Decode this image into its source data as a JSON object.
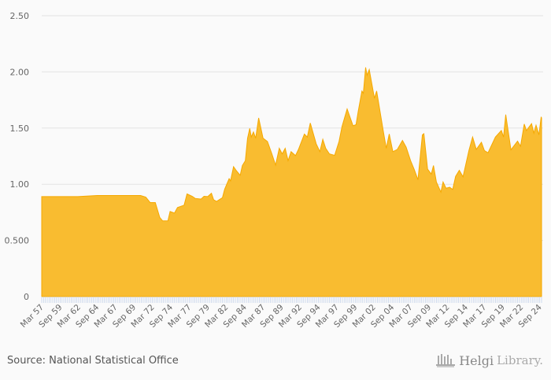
{
  "chart_data": {
    "type": "area",
    "title": "",
    "xlabel": "",
    "ylabel": "",
    "ylim": [
      0,
      2.5
    ],
    "yticks": [
      "0",
      "0.500",
      "1.00",
      "1.50",
      "2.00",
      "2.50"
    ],
    "ytick_values": [
      0,
      0.5,
      1.0,
      1.5,
      2.0,
      2.5
    ],
    "grid": true,
    "frequency": "quarterly",
    "x_start": "Mar 57",
    "x_end": "Dec 24",
    "num_periods": 272,
    "xtick_labels": [
      "Mar 57",
      "Sep 59",
      "Mar 62",
      "Sep 64",
      "Mar 67",
      "Sep 69",
      "Mar 72",
      "Sep 74",
      "Mar 77",
      "Sep 79",
      "Mar 82",
      "Sep 84",
      "Mar 87",
      "Sep 89",
      "Mar 92",
      "Sep 94",
      "Mar 97",
      "Sep 99",
      "Mar 02",
      "Sep 04",
      "Mar 07",
      "Sep 09",
      "Mar 12",
      "Sep 14",
      "Mar 17",
      "Sep 19",
      "Mar 22",
      "Sep 24"
    ],
    "series": [
      {
        "name": "Value",
        "color": "#f9bc30",
        "line_color": "#f5a800",
        "points": [
          [
            1957.0,
            0.89
          ],
          [
            1961.9,
            0.89
          ],
          [
            1964.5,
            0.9
          ],
          [
            1970.4,
            0.9
          ],
          [
            1971.1,
            0.886
          ],
          [
            1971.7,
            0.837
          ],
          [
            1972.4,
            0.837
          ],
          [
            1973.0,
            0.704
          ],
          [
            1973.4,
            0.674
          ],
          [
            1974.1,
            0.674
          ],
          [
            1974.4,
            0.758
          ],
          [
            1975.0,
            0.744
          ],
          [
            1975.4,
            0.793
          ],
          [
            1976.3,
            0.814
          ],
          [
            1976.7,
            0.914
          ],
          [
            1977.4,
            0.893
          ],
          [
            1977.8,
            0.874
          ],
          [
            1978.6,
            0.868
          ],
          [
            1979.0,
            0.893
          ],
          [
            1979.5,
            0.89
          ],
          [
            1980.0,
            0.92
          ],
          [
            1980.3,
            0.862
          ],
          [
            1980.7,
            0.847
          ],
          [
            1981.5,
            0.88
          ],
          [
            1981.8,
            0.956
          ],
          [
            1982.4,
            1.05
          ],
          [
            1982.6,
            1.03
          ],
          [
            1983.0,
            1.157
          ],
          [
            1983.4,
            1.12
          ],
          [
            1983.9,
            1.08
          ],
          [
            1984.2,
            1.167
          ],
          [
            1984.6,
            1.21
          ],
          [
            1984.9,
            1.41
          ],
          [
            1985.2,
            1.497
          ],
          [
            1985.4,
            1.42
          ],
          [
            1985.7,
            1.466
          ],
          [
            1986.0,
            1.41
          ],
          [
            1986.4,
            1.59
          ],
          [
            1987.0,
            1.41
          ],
          [
            1987.6,
            1.38
          ],
          [
            1988.2,
            1.27
          ],
          [
            1988.7,
            1.17
          ],
          [
            1989.2,
            1.32
          ],
          [
            1989.6,
            1.27
          ],
          [
            1990.0,
            1.32
          ],
          [
            1990.4,
            1.21
          ],
          [
            1990.8,
            1.29
          ],
          [
            1991.4,
            1.255
          ],
          [
            1991.8,
            1.31
          ],
          [
            1992.6,
            1.447
          ],
          [
            1993.0,
            1.42
          ],
          [
            1993.4,
            1.545
          ],
          [
            1994.2,
            1.36
          ],
          [
            1994.7,
            1.29
          ],
          [
            1995.1,
            1.4
          ],
          [
            1995.5,
            1.32
          ],
          [
            1996.0,
            1.27
          ],
          [
            1996.7,
            1.257
          ],
          [
            1997.3,
            1.38
          ],
          [
            1997.7,
            1.513
          ],
          [
            1998.4,
            1.67
          ],
          [
            1999.2,
            1.52
          ],
          [
            1999.6,
            1.53
          ],
          [
            1999.9,
            1.65
          ],
          [
            2000.4,
            1.83
          ],
          [
            2000.6,
            1.81
          ],
          [
            2000.9,
            2.04
          ],
          [
            2001.1,
            1.97
          ],
          [
            2001.4,
            2.02
          ],
          [
            2002.1,
            1.765
          ],
          [
            2002.4,
            1.83
          ],
          [
            2003.3,
            1.47
          ],
          [
            2003.7,
            1.32
          ],
          [
            2004.1,
            1.447
          ],
          [
            2004.6,
            1.29
          ],
          [
            2005.2,
            1.31
          ],
          [
            2005.9,
            1.39
          ],
          [
            2006.4,
            1.33
          ],
          [
            2007.0,
            1.21
          ],
          [
            2007.5,
            1.13
          ],
          [
            2008.0,
            1.04
          ],
          [
            2008.6,
            1.44
          ],
          [
            2008.8,
            1.45
          ],
          [
            2009.3,
            1.135
          ],
          [
            2009.8,
            1.09
          ],
          [
            2010.1,
            1.167
          ],
          [
            2010.5,
            1.02
          ],
          [
            2011.1,
            0.93
          ],
          [
            2011.4,
            1.02
          ],
          [
            2011.8,
            0.965
          ],
          [
            2012.3,
            0.973
          ],
          [
            2012.7,
            0.954
          ],
          [
            2013.1,
            1.07
          ],
          [
            2013.6,
            1.124
          ],
          [
            2014.1,
            1.066
          ],
          [
            2014.9,
            1.3
          ],
          [
            2015.4,
            1.42
          ],
          [
            2015.9,
            1.31
          ],
          [
            2016.6,
            1.374
          ],
          [
            2017.0,
            1.3
          ],
          [
            2017.5,
            1.28
          ],
          [
            2018.5,
            1.42
          ],
          [
            2019.3,
            1.478
          ],
          [
            2019.6,
            1.42
          ],
          [
            2019.9,
            1.62
          ],
          [
            2020.6,
            1.307
          ],
          [
            2021.5,
            1.384
          ],
          [
            2021.9,
            1.338
          ],
          [
            2022.4,
            1.536
          ],
          [
            2022.7,
            1.478
          ],
          [
            2023.4,
            1.54
          ],
          [
            2023.7,
            1.455
          ],
          [
            2024.0,
            1.525
          ],
          [
            2024.4,
            1.44
          ],
          [
            2024.7,
            1.6
          ],
          [
            2024.75,
            1.59
          ]
        ]
      }
    ]
  },
  "footer": {
    "source": "Source: National Statistical Office",
    "logo_text_bold": "Helgi",
    "logo_text_light": "Library."
  }
}
